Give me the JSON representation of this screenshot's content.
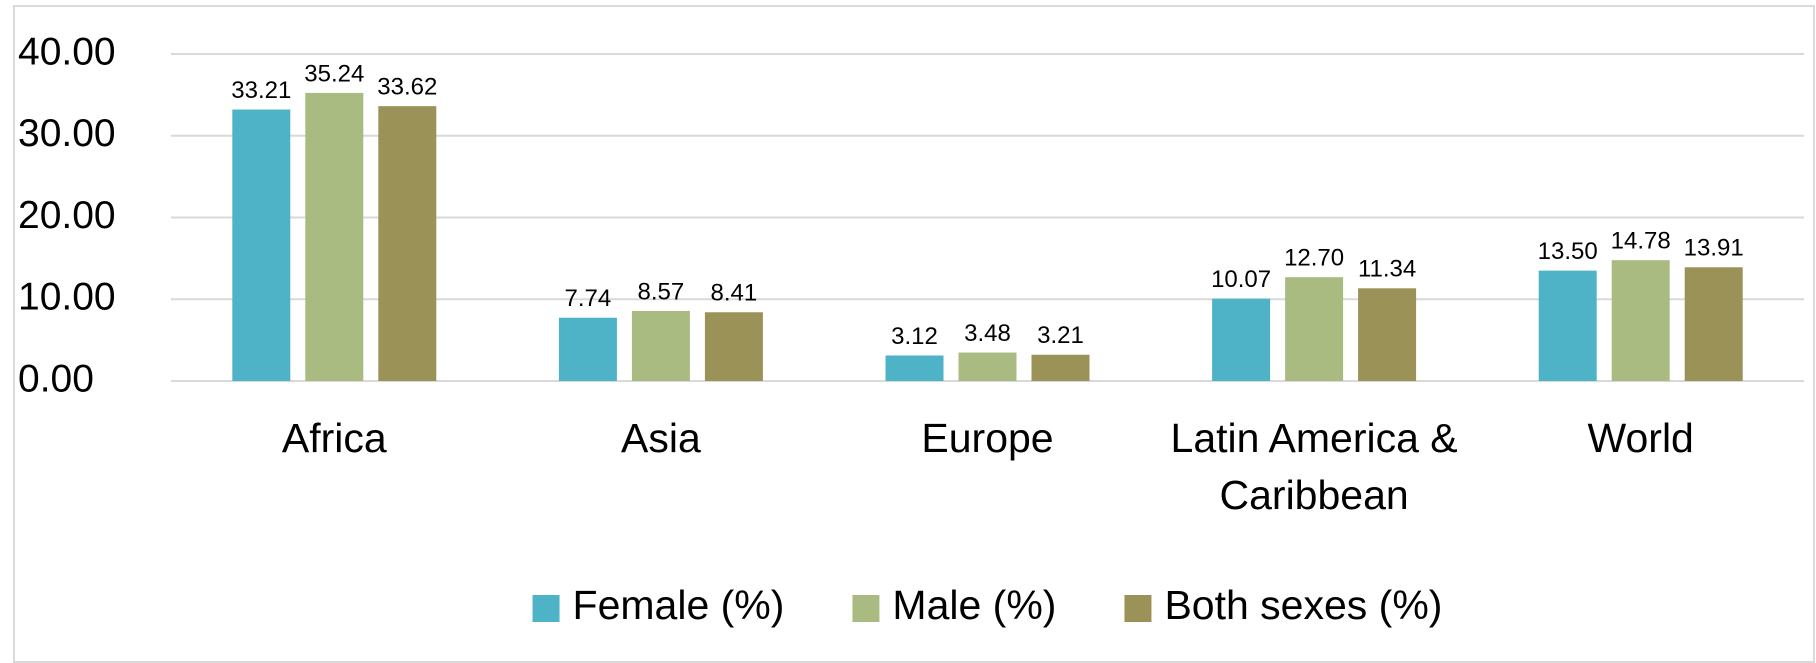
{
  "chart_data": {
    "type": "bar",
    "categories": [
      "Africa",
      "Asia",
      "Europe",
      "Latin America & Caribbean",
      "World"
    ],
    "series": [
      {
        "name": "Female (%)",
        "color": "#4fb3c8",
        "values": [
          33.21,
          7.74,
          3.12,
          10.07,
          13.5
        ],
        "value_labels": [
          "33.21",
          "7.74",
          "3.12",
          "10.07",
          "13.50"
        ]
      },
      {
        "name": "Male (%)",
        "color": "#a9bb80",
        "values": [
          35.24,
          8.57,
          3.48,
          12.7,
          14.78
        ],
        "value_labels": [
          "35.24",
          "8.57",
          "3.48",
          "12.70",
          "14.78"
        ]
      },
      {
        "name": "Both sexes (%)",
        "color": "#9b9257",
        "values": [
          33.62,
          8.41,
          3.21,
          11.34,
          13.91
        ],
        "value_labels": [
          "33.62",
          "8.41",
          "3.21",
          "11.34",
          "13.91"
        ]
      }
    ],
    "ylim": [
      0,
      40
    ],
    "yticks": [
      {
        "value": 0,
        "label": "0.00"
      },
      {
        "value": 10,
        "label": "10.00"
      },
      {
        "value": 20,
        "label": "20.00"
      },
      {
        "value": 30,
        "label": "30.00"
      },
      {
        "value": 40,
        "label": "40.00"
      }
    ],
    "grid": true,
    "legend": "bottom"
  }
}
